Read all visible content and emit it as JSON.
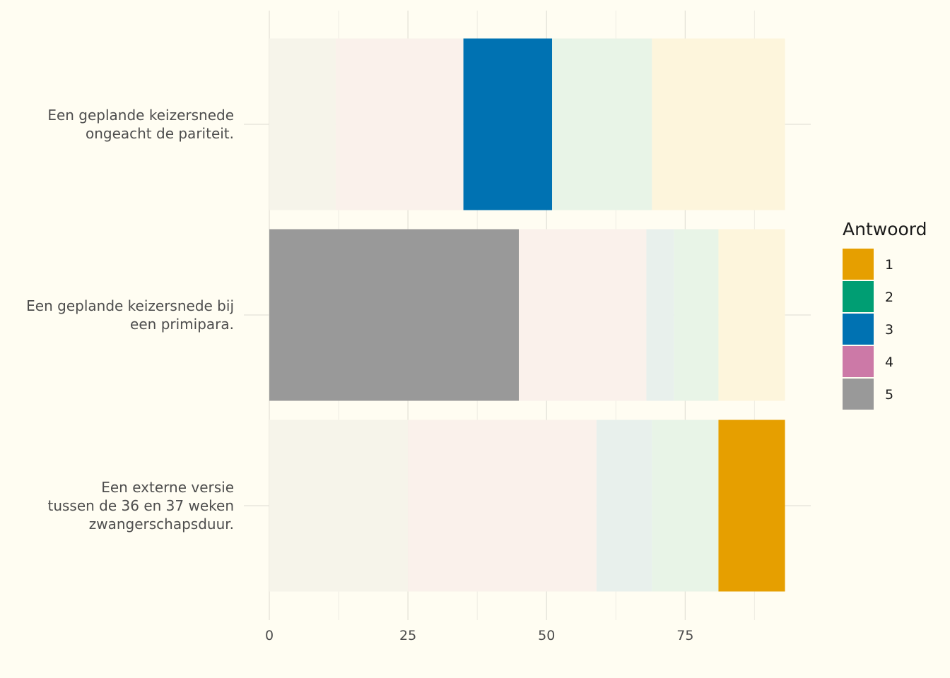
{
  "chart_data": {
    "type": "bar",
    "orientation": "horizontal",
    "stacked": true,
    "title": "",
    "xlabel": "",
    "ylabel": "",
    "xlim": [
      0,
      98
    ],
    "xticks": [
      0,
      25,
      50,
      75
    ],
    "grid": true,
    "categories": [
      [
        "Een geplande keizersnede",
        "ongeacht de pariteit."
      ],
      [
        "Een geplande keizersnede bij",
        "een primipara."
      ],
      [
        "Een externe versie",
        "tussen de 36 en 37 weken",
        "zwangerschapsduur."
      ]
    ],
    "series": [
      {
        "name": "5",
        "color": "#999999",
        "values": [
          12,
          45,
          25
        ]
      },
      {
        "name": "4",
        "color": "#cc79a7",
        "values": [
          23,
          23,
          34
        ]
      },
      {
        "name": "3",
        "color": "#0072b2",
        "values": [
          16,
          5,
          10
        ]
      },
      {
        "name": "2",
        "color": "#009e73",
        "values": [
          18,
          8,
          12
        ]
      },
      {
        "name": "1",
        "color": "#e69f00",
        "values": [
          24,
          12,
          12
        ]
      }
    ],
    "highlighted_series": [
      "3",
      "5",
      "1"
    ],
    "legend": {
      "title": "Antwoord",
      "position": "right",
      "order": [
        "1",
        "2",
        "3",
        "4",
        "5"
      ]
    }
  }
}
